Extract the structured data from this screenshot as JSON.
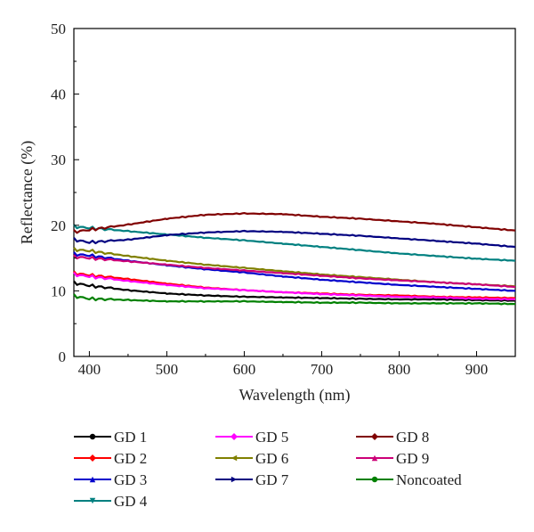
{
  "chart_data": {
    "type": "line",
    "title": "",
    "xlabel": "Wavelength (nm)",
    "ylabel": "Reflectance (%)",
    "xlim": [
      380,
      950
    ],
    "ylim": [
      0,
      50
    ],
    "x_ticks": [
      400,
      500,
      600,
      700,
      800,
      900
    ],
    "y_ticks": [
      0,
      10,
      20,
      30,
      40,
      50
    ],
    "grid": false,
    "legend_position": "bottom",
    "x": [
      380,
      400,
      450,
      500,
      550,
      600,
      650,
      700,
      750,
      800,
      850,
      900,
      950
    ],
    "series": [
      {
        "name": "GD 1",
        "color": "#000000",
        "marker": "circle",
        "values": [
          11.2,
          10.8,
          10.1,
          9.6,
          9.3,
          9.1,
          9.0,
          8.9,
          8.8,
          8.7,
          8.7,
          8.6,
          8.5
        ]
      },
      {
        "name": "GD 2",
        "color": "#ff0000",
        "marker": "diamond",
        "values": [
          12.7,
          12.4,
          11.8,
          11.1,
          10.5,
          10.1,
          9.8,
          9.6,
          9.4,
          9.3,
          9.1,
          9.0,
          8.9
        ]
      },
      {
        "name": "GD 3",
        "color": "#0000cc",
        "marker": "triangle-up",
        "values": [
          15.6,
          15.4,
          14.6,
          13.9,
          13.3,
          12.8,
          12.2,
          11.7,
          11.3,
          10.9,
          10.6,
          10.3,
          10.0
        ]
      },
      {
        "name": "GD 4",
        "color": "#008080",
        "marker": "triangle-down",
        "values": [
          19.8,
          19.6,
          19.1,
          18.6,
          18.1,
          17.7,
          17.2,
          16.7,
          16.2,
          15.7,
          15.3,
          14.9,
          14.6
        ]
      },
      {
        "name": "GD 5",
        "color": "#ff00ff",
        "marker": "diamond",
        "values": [
          12.5,
          12.2,
          11.5,
          10.9,
          10.4,
          10.1,
          9.8,
          9.5,
          9.3,
          9.1,
          9.0,
          8.8,
          8.7
        ]
      },
      {
        "name": "GD 6",
        "color": "#808000",
        "marker": "triangle-left",
        "values": [
          16.3,
          16.1,
          15.3,
          14.6,
          14.0,
          13.5,
          13.0,
          12.5,
          12.1,
          11.7,
          11.3,
          11.0,
          10.7
        ]
      },
      {
        "name": "GD 7",
        "color": "#000080",
        "marker": "triangle-right",
        "values": [
          17.8,
          17.4,
          17.8,
          18.5,
          18.9,
          19.1,
          19.0,
          18.7,
          18.4,
          18.0,
          17.6,
          17.2,
          16.7
        ]
      },
      {
        "name": "GD 8",
        "color": "#800000",
        "marker": "diamond",
        "values": [
          19.0,
          19.3,
          20.1,
          21.0,
          21.6,
          21.8,
          21.7,
          21.3,
          21.0,
          20.6,
          20.2,
          19.7,
          19.2
        ]
      },
      {
        "name": "GD 9",
        "color": "#cc0077",
        "marker": "triangle-up",
        "values": [
          15.2,
          15.0,
          14.5,
          14.0,
          13.5,
          13.1,
          12.7,
          12.3,
          11.9,
          11.6,
          11.3,
          11.0,
          10.6
        ]
      },
      {
        "name": "Noncoated",
        "color": "#008000",
        "marker": "circle",
        "values": [
          9.2,
          8.8,
          8.6,
          8.4,
          8.4,
          8.4,
          8.3,
          8.2,
          8.2,
          8.1,
          8.1,
          8.1,
          8.0
        ]
      }
    ]
  }
}
